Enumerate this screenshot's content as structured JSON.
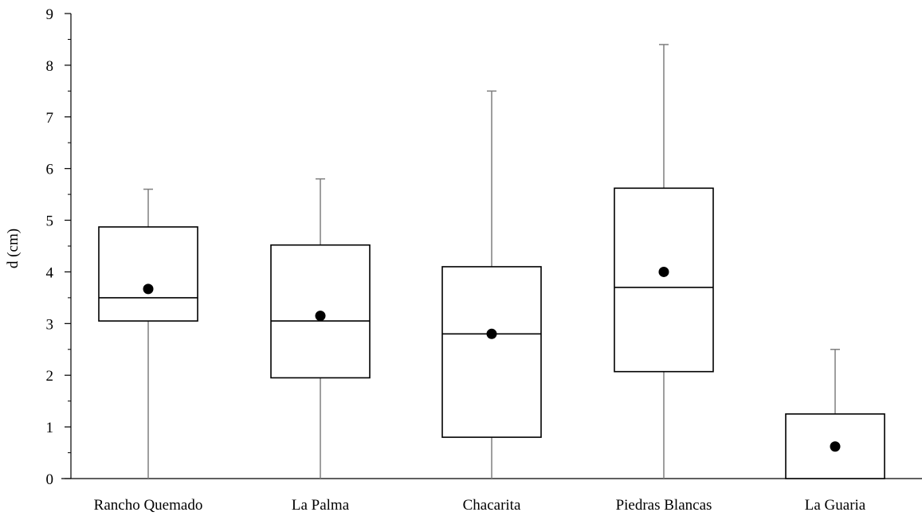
{
  "chart_data": {
    "type": "boxplot",
    "title": "",
    "xlabel": "",
    "ylabel": "d (cm)",
    "ylim": [
      0,
      9
    ],
    "yticks": [
      0,
      1,
      2,
      3,
      4,
      5,
      6,
      7,
      8,
      9
    ],
    "grid": false,
    "legend": "none",
    "colors": {
      "box_stroke": "#000000",
      "whisker": "#7f7f7f",
      "mean_marker": "#000000",
      "axis": "#000000"
    },
    "categories": [
      "Rancho Quemado",
      "La Palma",
      "Chacarita",
      "Piedras Blancas",
      "La Guaria"
    ],
    "boxes": [
      {
        "min": 0,
        "q1": 3.05,
        "median": 3.5,
        "q3": 4.87,
        "max": 5.6,
        "mean": 3.67
      },
      {
        "min": 0,
        "q1": 1.95,
        "median": 3.05,
        "q3": 4.52,
        "max": 5.8,
        "mean": 3.15
      },
      {
        "min": 0,
        "q1": 0.8,
        "median": 2.8,
        "q3": 4.1,
        "max": 7.5,
        "mean": 2.8
      },
      {
        "min": 0,
        "q1": 2.07,
        "median": 3.7,
        "q3": 5.62,
        "max": 8.4,
        "mean": 4.0
      },
      {
        "min": 0,
        "q1": 0,
        "median": 0,
        "q3": 1.25,
        "max": 2.5,
        "mean": 0.62
      }
    ]
  }
}
